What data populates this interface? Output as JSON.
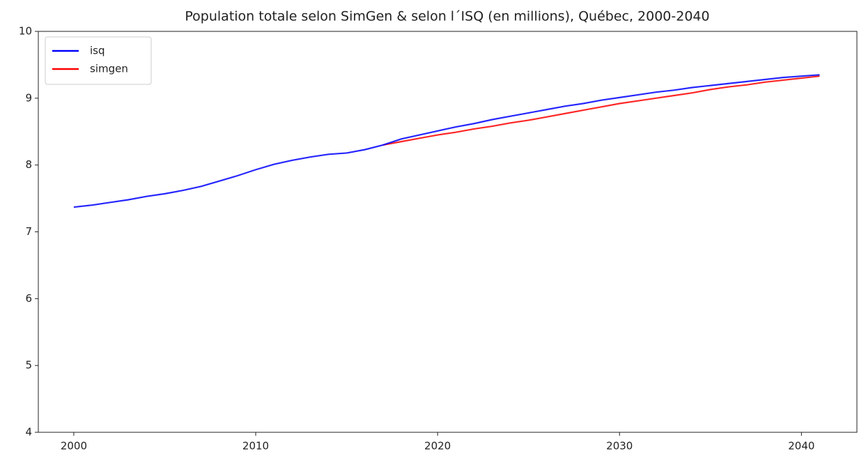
{
  "chart_data": {
    "type": "line",
    "title": "Population totale selon SimGen & selon l´ISQ (en millions), Québec, 2000-2040",
    "x": [
      2000,
      2001,
      2002,
      2003,
      2004,
      2005,
      2006,
      2007,
      2008,
      2009,
      2010,
      2011,
      2012,
      2013,
      2014,
      2015,
      2016,
      2017,
      2018,
      2019,
      2020,
      2021,
      2022,
      2023,
      2024,
      2025,
      2026,
      2027,
      2028,
      2029,
      2030,
      2031,
      2032,
      2033,
      2034,
      2035,
      2036,
      2037,
      2038,
      2039,
      2040,
      2041
    ],
    "series": [
      {
        "name": "isq",
        "color": "#0000ff",
        "values": [
          7.37,
          7.4,
          7.44,
          7.48,
          7.53,
          7.57,
          7.62,
          7.68,
          7.76,
          7.84,
          7.93,
          8.01,
          8.07,
          8.12,
          8.16,
          8.18,
          8.23,
          8.3,
          8.39,
          8.45,
          8.51,
          8.57,
          8.62,
          8.68,
          8.73,
          8.78,
          8.83,
          8.88,
          8.92,
          8.97,
          9.01,
          9.05,
          9.09,
          9.12,
          9.16,
          9.19,
          9.22,
          9.25,
          9.28,
          9.31,
          9.33,
          9.35
        ]
      },
      {
        "name": "simgen",
        "color": "#ff0000",
        "values": [
          null,
          null,
          null,
          null,
          null,
          null,
          null,
          null,
          null,
          null,
          null,
          null,
          null,
          null,
          null,
          null,
          null,
          8.3,
          8.35,
          8.4,
          8.45,
          8.49,
          8.54,
          8.58,
          8.63,
          8.67,
          8.72,
          8.77,
          8.82,
          8.87,
          8.92,
          8.96,
          9.0,
          9.04,
          9.08,
          9.13,
          9.17,
          9.2,
          9.24,
          9.27,
          9.3,
          9.33
        ]
      }
    ],
    "xlim": [
      1998.05,
      2043.05
    ],
    "xticks": [
      2000,
      2010,
      2020,
      2030,
      2040
    ],
    "ylim": [
      4,
      10
    ],
    "yticks": [
      4,
      5,
      6,
      7,
      8,
      9,
      10
    ],
    "legend": "upper left",
    "grid": false
  }
}
